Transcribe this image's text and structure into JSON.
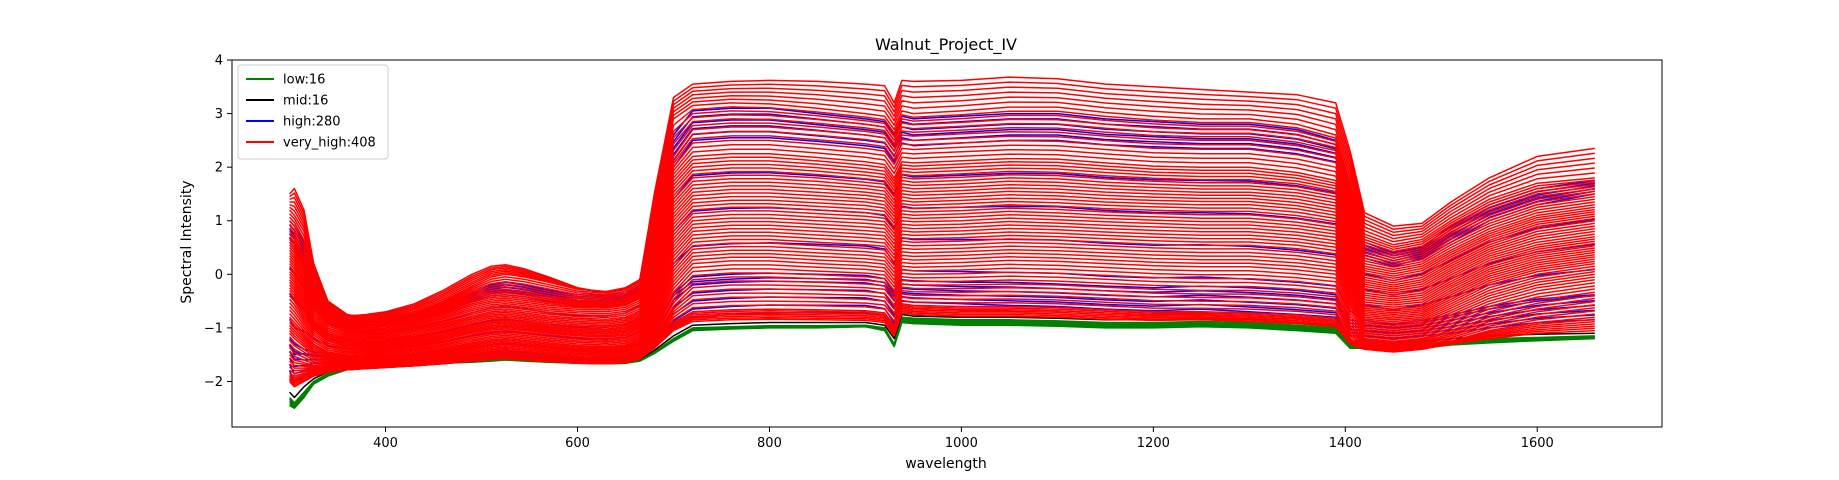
{
  "chart_data": {
    "type": "line",
    "title": "Walnut_Project_IV",
    "xlabel": "wavelength",
    "ylabel": "Spectral Intensity",
    "xlim": [
      240,
      1730
    ],
    "ylim": [
      -2.85,
      4.0
    ],
    "xticks": [
      400,
      600,
      800,
      1000,
      1200,
      1400,
      1600
    ],
    "yticks": [
      -2,
      -1,
      0,
      1,
      2,
      3,
      4
    ],
    "xtick_labels": [
      "400",
      "600",
      "800",
      "1000",
      "1200",
      "1400",
      "1600"
    ],
    "ytick_labels": [
      "−2",
      "−1",
      "0",
      "1",
      "2",
      "3",
      "4"
    ],
    "grid": false,
    "legend_position": "top-left",
    "x": [
      300,
      305,
      315,
      325,
      340,
      360,
      380,
      400,
      430,
      460,
      490,
      510,
      525,
      545,
      570,
      600,
      630,
      650,
      665,
      680,
      700,
      720,
      760,
      800,
      850,
      900,
      920,
      930,
      938,
      950,
      1000,
      1050,
      1100,
      1150,
      1200,
      1250,
      1300,
      1350,
      1390,
      1405,
      1420,
      1450,
      1480,
      1510,
      1550,
      1600,
      1660
    ],
    "series": [
      {
        "name": "low:16",
        "color": "#008000",
        "curves": [
          [
            -2.3,
            -2.4,
            -2.2,
            -2.0,
            -1.85,
            -1.75,
            -1.7,
            -1.68,
            -1.66,
            -1.64,
            -1.62,
            -1.6,
            -1.58,
            -1.6,
            -1.62,
            -1.65,
            -1.66,
            -1.65,
            -1.6,
            -1.45,
            -1.2,
            -1.0,
            -0.98,
            -0.96,
            -0.96,
            -0.95,
            -1.0,
            -1.3,
            -0.8,
            -0.82,
            -0.85,
            -0.85,
            -0.87,
            -0.9,
            -0.9,
            -0.88,
            -0.9,
            -0.95,
            -1.0,
            -1.3,
            -1.3,
            -1.35,
            -1.3,
            -1.25,
            -1.2,
            -1.18,
            -1.15
          ],
          [
            -2.45,
            -2.5,
            -2.3,
            -2.05,
            -1.9,
            -1.78,
            -1.72,
            -1.7,
            -1.68,
            -1.66,
            -1.64,
            -1.62,
            -1.6,
            -1.62,
            -1.64,
            -1.66,
            -1.67,
            -1.66,
            -1.62,
            -1.48,
            -1.25,
            -1.05,
            -1.02,
            -1.0,
            -1.0,
            -0.98,
            -1.05,
            -1.35,
            -0.9,
            -0.92,
            -0.95,
            -0.95,
            -0.97,
            -1.0,
            -1.0,
            -0.98,
            -1.0,
            -1.05,
            -1.1,
            -1.38,
            -1.38,
            -1.42,
            -1.38,
            -1.32,
            -1.28,
            -1.24,
            -1.2
          ]
        ]
      },
      {
        "name": "mid:16",
        "color": "#000000",
        "curves": [
          [
            -2.2,
            -2.3,
            -2.1,
            -1.95,
            -1.82,
            -1.74,
            -1.7,
            -1.68,
            -1.66,
            -1.63,
            -1.6,
            -1.57,
            -1.55,
            -1.57,
            -1.6,
            -1.63,
            -1.64,
            -1.63,
            -1.58,
            -1.42,
            -1.15,
            -0.95,
            -0.92,
            -0.9,
            -0.9,
            -0.9,
            -0.95,
            -1.2,
            -0.75,
            -0.78,
            -0.8,
            -0.8,
            -0.82,
            -0.85,
            -0.85,
            -0.83,
            -0.85,
            -0.9,
            -0.95,
            -1.25,
            -1.25,
            -1.3,
            -1.25,
            -1.2,
            -1.15,
            -1.12,
            -1.1
          ]
        ]
      },
      {
        "name": "high:280",
        "color": "#0000ff",
        "curves": [
          [
            1.0,
            0.9,
            0.6,
            0.1,
            -0.55,
            -0.8,
            -0.88,
            -0.88,
            -0.8,
            -0.6,
            -0.35,
            -0.2,
            -0.15,
            -0.2,
            -0.3,
            -0.38,
            -0.4,
            -0.35,
            -0.2,
            1.0,
            2.6,
            3.05,
            3.1,
            3.1,
            3.0,
            2.9,
            2.85,
            2.6,
            2.95,
            2.9,
            2.95,
            3.0,
            3.0,
            2.9,
            2.85,
            2.8,
            2.8,
            2.7,
            2.5,
            1.5,
            0.6,
            0.4,
            0.5,
            0.9,
            1.3,
            1.6,
            1.75
          ],
          [
            0.6,
            0.5,
            0.2,
            -0.3,
            -0.7,
            -0.9,
            -0.95,
            -0.93,
            -0.85,
            -0.7,
            -0.5,
            -0.4,
            -0.38,
            -0.42,
            -0.5,
            -0.55,
            -0.56,
            -0.5,
            -0.35,
            0.7,
            2.0,
            2.5,
            2.55,
            2.55,
            2.48,
            2.4,
            2.35,
            2.1,
            2.45,
            2.4,
            2.45,
            2.5,
            2.5,
            2.42,
            2.38,
            2.35,
            2.35,
            2.25,
            2.1,
            1.2,
            0.3,
            0.15,
            0.3,
            0.6,
            1.0,
            1.3,
            1.5
          ],
          [
            -1.8,
            -2.0,
            -1.9,
            -1.8,
            -1.75,
            -1.72,
            -1.7,
            -1.68,
            -1.65,
            -1.62,
            -1.58,
            -1.55,
            -1.52,
            -1.55,
            -1.58,
            -1.62,
            -1.63,
            -1.62,
            -1.55,
            -1.35,
            -1.0,
            -0.8,
            -0.75,
            -0.72,
            -0.72,
            -0.72,
            -0.78,
            -1.05,
            -0.5,
            -0.52,
            -0.55,
            -0.58,
            -0.6,
            -0.65,
            -0.68,
            -0.65,
            -0.7,
            -0.75,
            -0.8,
            -1.15,
            -1.15,
            -1.2,
            -1.15,
            -1.1,
            -1.0,
            -0.9,
            -0.85
          ],
          [
            -1.2,
            -1.3,
            -1.4,
            -1.45,
            -1.5,
            -1.55,
            -1.58,
            -1.6,
            -1.58,
            -1.55,
            -1.5,
            -1.45,
            -1.42,
            -1.45,
            -1.5,
            -1.55,
            -1.57,
            -1.55,
            -1.45,
            -1.1,
            -0.35,
            -0.05,
            0.0,
            0.02,
            0.0,
            -0.02,
            -0.08,
            -0.35,
            -0.1,
            -0.12,
            -0.15,
            -0.15,
            -0.18,
            -0.22,
            -0.25,
            -0.22,
            -0.25,
            -0.3,
            -0.38,
            -0.85,
            -0.9,
            -0.95,
            -0.9,
            -0.8,
            -0.65,
            -0.5,
            -0.4
          ]
        ]
      },
      {
        "name": "very_high:408",
        "color": "#ff0000",
        "curves": [
          [
            1.5,
            1.6,
            1.2,
            0.2,
            -0.65,
            -0.78,
            -0.75,
            -0.7,
            -0.55,
            -0.3,
            0.0,
            0.15,
            0.18,
            0.1,
            -0.05,
            -0.25,
            -0.35,
            -0.28,
            -0.1,
            1.5,
            3.3,
            3.55,
            3.6,
            3.62,
            3.6,
            3.55,
            3.52,
            3.2,
            3.62,
            3.6,
            3.62,
            3.68,
            3.65,
            3.55,
            3.5,
            3.45,
            3.4,
            3.35,
            3.2,
            2.3,
            1.15,
            0.9,
            0.95,
            1.35,
            1.8,
            2.2,
            2.35
          ],
          [
            1.2,
            1.1,
            0.8,
            0.2,
            -0.5,
            -0.75,
            -0.82,
            -0.82,
            -0.72,
            -0.5,
            -0.22,
            -0.05,
            0.0,
            -0.05,
            -0.15,
            -0.28,
            -0.32,
            -0.25,
            -0.1,
            1.2,
            2.9,
            3.15,
            3.2,
            3.18,
            3.1,
            3.0,
            2.95,
            2.7,
            3.05,
            3.0,
            3.05,
            3.12,
            3.12,
            3.02,
            2.95,
            2.9,
            2.9,
            2.8,
            2.6,
            1.7,
            0.75,
            0.55,
            0.65,
            1.0,
            1.4,
            1.7,
            1.8
          ],
          [
            0.8,
            0.7,
            0.3,
            -0.2,
            -0.62,
            -0.85,
            -0.9,
            -0.9,
            -0.8,
            -0.62,
            -0.4,
            -0.3,
            -0.28,
            -0.32,
            -0.4,
            -0.48,
            -0.5,
            -0.45,
            -0.3,
            0.8,
            2.2,
            2.7,
            2.75,
            2.75,
            2.68,
            2.6,
            2.55,
            2.3,
            2.6,
            2.58,
            2.62,
            2.66,
            2.65,
            2.58,
            2.52,
            2.5,
            2.5,
            2.4,
            2.25,
            1.3,
            0.45,
            0.3,
            0.4,
            0.75,
            1.1,
            1.4,
            1.55
          ],
          [
            0.5,
            0.4,
            0.1,
            -0.4,
            -0.75,
            -0.92,
            -0.96,
            -0.95,
            -0.88,
            -0.75,
            -0.58,
            -0.5,
            -0.48,
            -0.52,
            -0.58,
            -0.62,
            -0.63,
            -0.58,
            -0.45,
            0.5,
            1.8,
            2.2,
            2.25,
            2.25,
            2.18,
            2.1,
            2.05,
            1.8,
            2.1,
            2.08,
            2.12,
            2.16,
            2.15,
            2.08,
            2.02,
            2.0,
            2.0,
            1.9,
            1.75,
            0.9,
            0.15,
            0.05,
            0.15,
            0.45,
            0.8,
            1.1,
            1.25
          ],
          [
            0.2,
            0.1,
            -0.2,
            -0.6,
            -0.9,
            -1.05,
            -1.1,
            -1.1,
            -1.02,
            -0.92,
            -0.78,
            -0.7,
            -0.68,
            -0.72,
            -0.78,
            -0.82,
            -0.84,
            -0.8,
            -0.68,
            0.2,
            1.4,
            1.8,
            1.85,
            1.85,
            1.8,
            1.72,
            1.68,
            1.45,
            1.75,
            1.72,
            1.75,
            1.8,
            1.78,
            1.72,
            1.68,
            1.65,
            1.65,
            1.58,
            1.45,
            0.6,
            -0.1,
            -0.2,
            -0.1,
            0.2,
            0.55,
            0.85,
            1.0
          ],
          [
            -0.1,
            -0.2,
            -0.5,
            -0.85,
            -1.1,
            -1.2,
            -1.25,
            -1.25,
            -1.18,
            -1.08,
            -0.95,
            -0.88,
            -0.86,
            -0.9,
            -0.96,
            -1.0,
            -1.02,
            -0.98,
            -0.86,
            -0.1,
            1.0,
            1.4,
            1.45,
            1.45,
            1.4,
            1.35,
            1.3,
            1.08,
            1.38,
            1.35,
            1.38,
            1.42,
            1.4,
            1.35,
            1.32,
            1.3,
            1.3,
            1.22,
            1.1,
            0.3,
            -0.35,
            -0.42,
            -0.35,
            -0.05,
            0.3,
            0.55,
            0.7
          ],
          [
            -0.4,
            -0.5,
            -0.8,
            -1.05,
            -1.25,
            -1.35,
            -1.38,
            -1.38,
            -1.32,
            -1.22,
            -1.1,
            -1.04,
            -1.02,
            -1.05,
            -1.1,
            -1.15,
            -1.17,
            -1.14,
            -1.02,
            -0.4,
            0.6,
            1.0,
            1.05,
            1.05,
            1.0,
            0.95,
            0.92,
            0.7,
            1.0,
            0.98,
            1.0,
            1.05,
            1.02,
            0.98,
            0.95,
            0.92,
            0.92,
            0.85,
            0.75,
            0.0,
            -0.6,
            -0.65,
            -0.6,
            -0.3,
            0.05,
            0.3,
            0.45
          ],
          [
            -0.8,
            -0.9,
            -1.1,
            -1.3,
            -1.45,
            -1.5,
            -1.52,
            -1.52,
            -1.47,
            -1.38,
            -1.28,
            -1.22,
            -1.2,
            -1.23,
            -1.28,
            -1.33,
            -1.35,
            -1.32,
            -1.2,
            -0.7,
            0.2,
            0.6,
            0.65,
            0.65,
            0.6,
            0.55,
            0.52,
            0.3,
            0.62,
            0.6,
            0.62,
            0.66,
            0.64,
            0.6,
            0.56,
            0.54,
            0.54,
            0.48,
            0.38,
            -0.3,
            -0.8,
            -0.85,
            -0.8,
            -0.55,
            -0.2,
            0.05,
            0.2
          ],
          [
            -1.1,
            -1.2,
            -1.35,
            -1.5,
            -1.58,
            -1.62,
            -1.64,
            -1.64,
            -1.6,
            -1.52,
            -1.43,
            -1.38,
            -1.36,
            -1.39,
            -1.43,
            -1.47,
            -1.49,
            -1.46,
            -1.36,
            -0.95,
            -0.2,
            0.2,
            0.25,
            0.25,
            0.2,
            0.16,
            0.12,
            -0.1,
            0.22,
            0.2,
            0.22,
            0.26,
            0.24,
            0.2,
            0.16,
            0.14,
            0.14,
            0.08,
            0.0,
            -0.6,
            -1.0,
            -1.05,
            -1.0,
            -0.8,
            -0.5,
            -0.25,
            -0.1
          ],
          [
            -1.5,
            -1.6,
            -1.65,
            -1.7,
            -1.72,
            -1.73,
            -1.73,
            -1.72,
            -1.69,
            -1.64,
            -1.58,
            -1.54,
            -1.52,
            -1.55,
            -1.58,
            -1.62,
            -1.63,
            -1.61,
            -1.52,
            -1.2,
            -0.6,
            -0.25,
            -0.2,
            -0.2,
            -0.22,
            -0.25,
            -0.28,
            -0.5,
            -0.18,
            -0.2,
            -0.2,
            -0.18,
            -0.2,
            -0.24,
            -0.28,
            -0.3,
            -0.3,
            -0.35,
            -0.42,
            -0.95,
            -1.2,
            -1.25,
            -1.2,
            -1.05,
            -0.8,
            -0.6,
            -0.45
          ],
          [
            -1.85,
            -1.9,
            -1.85,
            -1.82,
            -1.8,
            -1.78,
            -1.76,
            -1.74,
            -1.71,
            -1.67,
            -1.62,
            -1.58,
            -1.56,
            -1.59,
            -1.62,
            -1.65,
            -1.66,
            -1.64,
            -1.56,
            -1.3,
            -0.9,
            -0.7,
            -0.66,
            -0.65,
            -0.66,
            -0.68,
            -0.72,
            -0.95,
            -0.55,
            -0.58,
            -0.6,
            -0.6,
            -0.62,
            -0.66,
            -0.7,
            -0.7,
            -0.72,
            -0.76,
            -0.82,
            -1.2,
            -1.35,
            -1.4,
            -1.35,
            -1.25,
            -1.05,
            -0.9,
            -0.8
          ],
          [
            -2.0,
            -2.1,
            -2.0,
            -1.9,
            -1.83,
            -1.78,
            -1.75,
            -1.73,
            -1.7,
            -1.66,
            -1.62,
            -1.59,
            -1.57,
            -1.6,
            -1.63,
            -1.66,
            -1.67,
            -1.65,
            -1.58,
            -1.38,
            -1.05,
            -0.88,
            -0.85,
            -0.84,
            -0.85,
            -0.86,
            -0.9,
            -1.15,
            -0.72,
            -0.75,
            -0.78,
            -0.78,
            -0.8,
            -0.84,
            -0.86,
            -0.85,
            -0.88,
            -0.92,
            -0.98,
            -1.3,
            -1.4,
            -1.45,
            -1.4,
            -1.3,
            -1.2,
            -1.1,
            -1.05
          ]
        ]
      }
    ]
  }
}
